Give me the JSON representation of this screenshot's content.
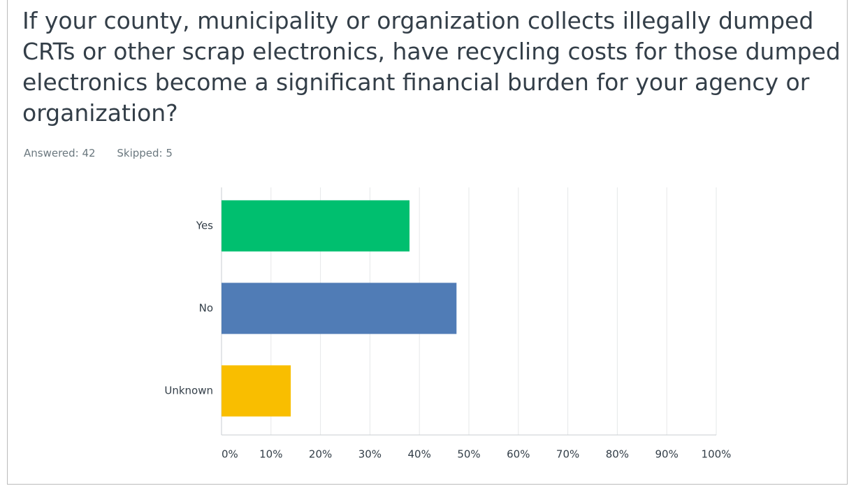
{
  "chart_data": {
    "type": "bar",
    "orientation": "horizontal",
    "title": "If your county, municipality or organization collects illegally dumped CRTs or other scrap electronics, have recycling costs for those dumped electronics become a significant financial burden for your agency or organization?",
    "answered": "Answered: 42",
    "skipped": "Skipped: 5",
    "categories": [
      "Yes",
      "No",
      "Unknown"
    ],
    "values": [
      38,
      47.5,
      14
    ],
    "colors": [
      "#00bf6f",
      "#507cb6",
      "#f9be00"
    ],
    "xlim": [
      0,
      100
    ],
    "xticks": [
      {
        "value": 0,
        "label": "0%"
      },
      {
        "value": 10,
        "label": "10%"
      },
      {
        "value": 20,
        "label": "20%"
      },
      {
        "value": 30,
        "label": "30%"
      },
      {
        "value": 40,
        "label": "40%"
      },
      {
        "value": 50,
        "label": "50%"
      },
      {
        "value": 60,
        "label": "60%"
      },
      {
        "value": 70,
        "label": "70%"
      },
      {
        "value": 80,
        "label": "80%"
      },
      {
        "value": 90,
        "label": "90%"
      },
      {
        "value": 100,
        "label": "100%"
      }
    ],
    "grid": true
  }
}
